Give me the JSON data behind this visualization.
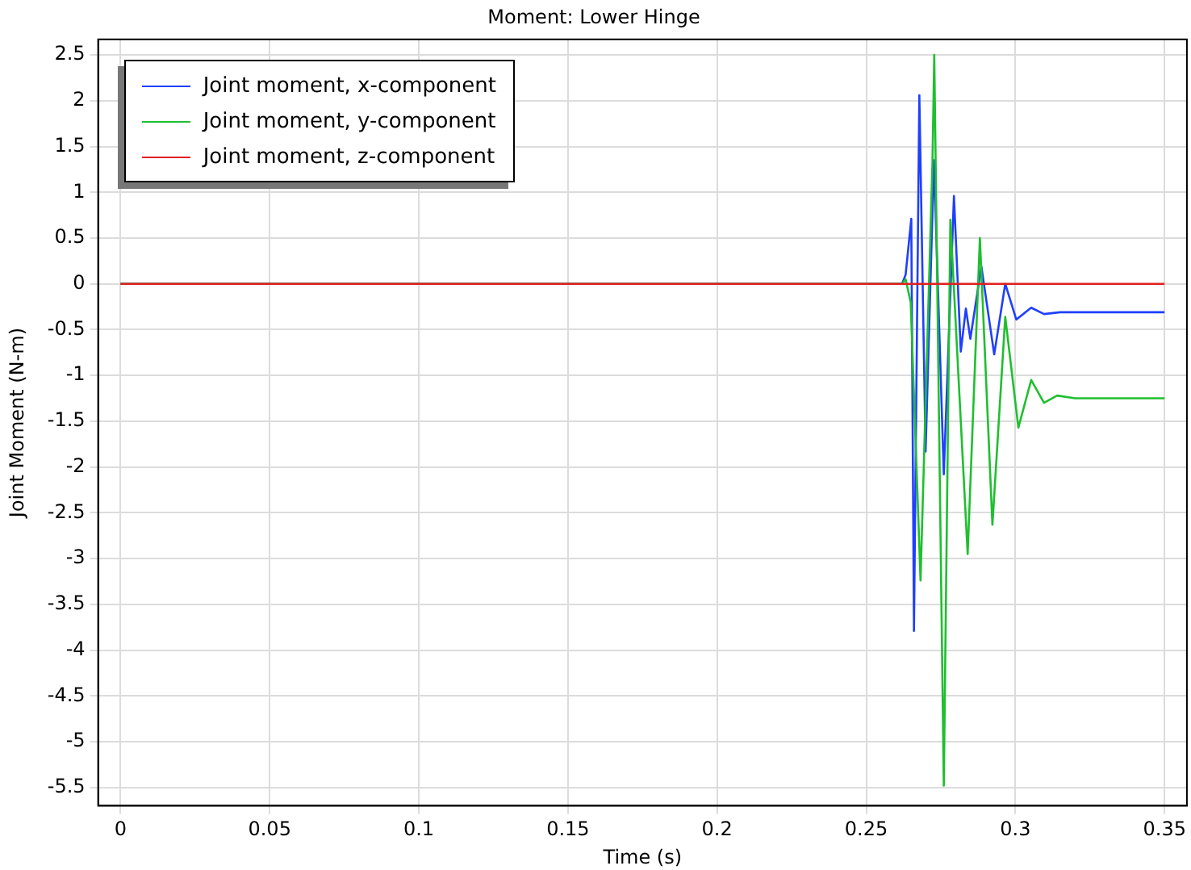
{
  "chart_data": {
    "type": "line",
    "title": "Moment: Lower Hinge",
    "xlabel": "Time (s)",
    "ylabel": "Joint Moment (N-m)",
    "xlim": [
      -0.0075,
      0.3575
    ],
    "ylim": [
      -5.7,
      2.67
    ],
    "xticks": [
      0,
      0.05,
      0.1,
      0.15,
      0.2,
      0.25,
      0.3,
      0.35
    ],
    "yticks": [
      -5.5,
      -5,
      -4.5,
      -4,
      -3.5,
      -3,
      -2.5,
      -2,
      -1.5,
      -1,
      -0.5,
      0,
      0.5,
      1,
      1.5,
      2,
      2.5
    ],
    "grid": true,
    "legend": "top left",
    "marker": "none",
    "line_style": "solid",
    "series": [
      {
        "name": "Joint moment, x-component",
        "color": "#1f3fff",
        "x": [
          0,
          0.262,
          0.2632,
          0.2651,
          0.266,
          0.2678,
          0.2699,
          0.2727,
          0.276,
          0.2794,
          0.2817,
          0.2834,
          0.2849,
          0.2886,
          0.2929,
          0.2966,
          0.3003,
          0.3053,
          0.3096,
          0.315,
          0.35
        ],
        "values": [
          0,
          0,
          0.1,
          0.71,
          -3.79,
          2.06,
          -1.83,
          1.35,
          -2.08,
          0.96,
          -0.74,
          -0.27,
          -0.6,
          0.19,
          -0.77,
          0,
          -0.39,
          -0.26,
          -0.33,
          -0.31,
          -0.31
        ]
      },
      {
        "name": "Joint moment, y-component",
        "color": "#1fbf2f",
        "x": [
          0,
          0.262,
          0.2632,
          0.2649,
          0.2682,
          0.2722,
          0.2728,
          0.276,
          0.2782,
          0.284,
          0.2881,
          0.2923,
          0.2966,
          0.301,
          0.3053,
          0.3096,
          0.314,
          0.32,
          0.35
        ],
        "values": [
          0,
          0,
          0.05,
          -0.2,
          -3.24,
          1.33,
          2.5,
          -5.48,
          0.7,
          -2.95,
          0.5,
          -2.63,
          -0.36,
          -1.57,
          -1.05,
          -1.3,
          -1.22,
          -1.25,
          -1.25
        ]
      },
      {
        "name": "Joint moment, z-component",
        "color": "#e0201f",
        "x": [
          0,
          0.35
        ],
        "values": [
          0,
          0
        ]
      }
    ]
  }
}
